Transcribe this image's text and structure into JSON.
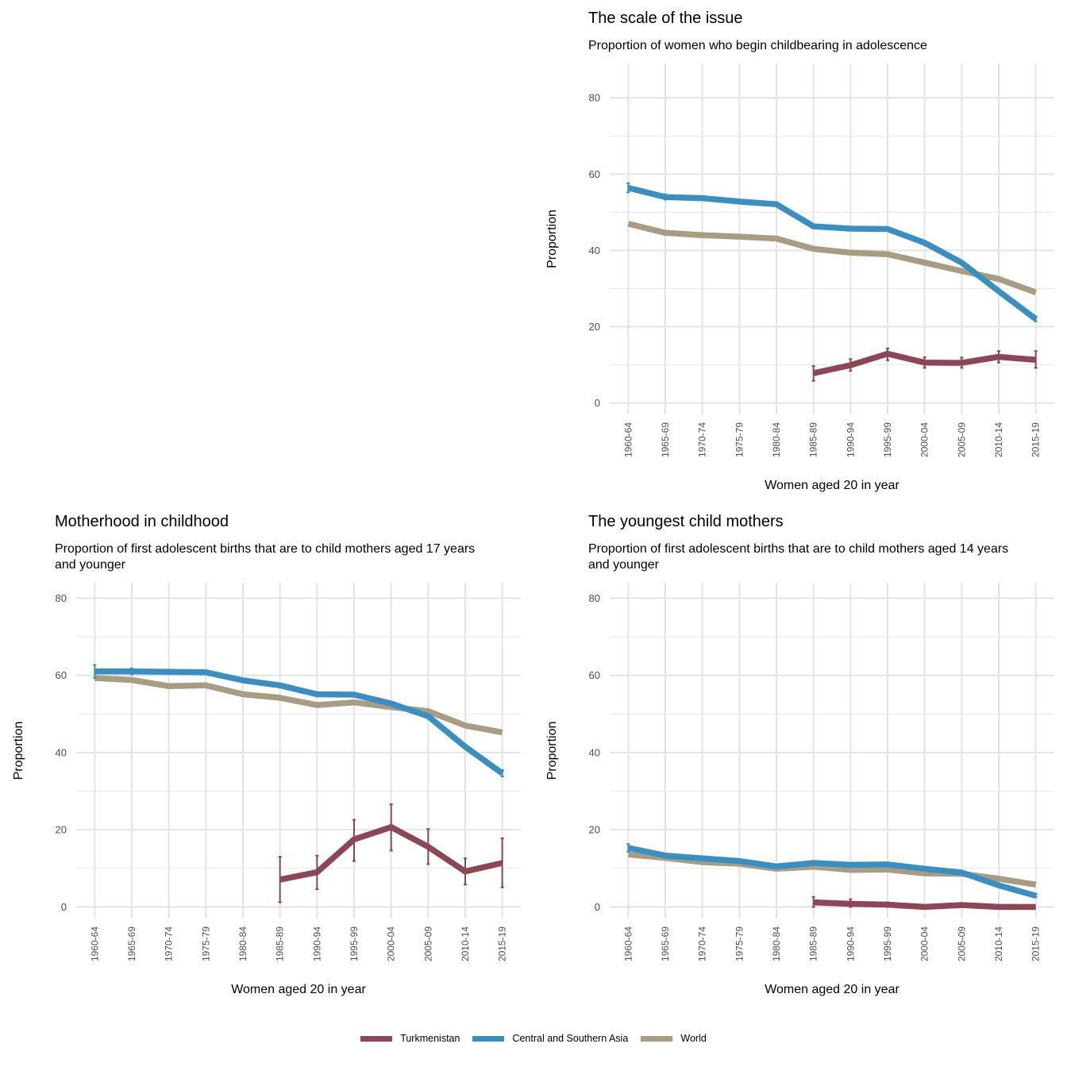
{
  "legend": {
    "items": [
      {
        "label": "Turkmenistan",
        "color": "#8c4655"
      },
      {
        "label": "Central and Southern Asia",
        "color": "#3a8fc2"
      },
      {
        "label": "World",
        "color": "#a89d82"
      }
    ]
  },
  "chart_data": [
    {
      "type": "line",
      "title": "The scale of the issue",
      "subtitle": "Proportion of women who begin childbearing in adolescence",
      "xlabel": "Women aged 20 in year",
      "ylabel": "Proportion",
      "ylim": [
        -3,
        89
      ],
      "yticks": [
        0,
        20,
        40,
        60,
        80
      ],
      "grid": true,
      "categories": [
        "1960-64",
        "1965-69",
        "1970-74",
        "1975-79",
        "1980-84",
        "1985-89",
        "1990-94",
        "1995-99",
        "2000-04",
        "2005-09",
        "2010-14",
        "2015-19"
      ],
      "series": [
        {
          "name": "World",
          "color": "#a89d82",
          "values": [
            47,
            44.6,
            44,
            43.6,
            43.1,
            40.4,
            39.4,
            39,
            36.8,
            34.6,
            32.5,
            29
          ]
        },
        {
          "name": "Central and Southern Asia",
          "color": "#3a8fc2",
          "values": [
            56.4,
            54,
            53.7,
            52.8,
            52.1,
            46.3,
            45.7,
            45.6,
            42,
            36.8,
            29.3,
            22
          ],
          "errors": [
            [
              55.2,
              57.6
            ],
            [
              53.3,
              54.7
            ],
            null,
            null,
            null,
            null,
            null,
            null,
            null,
            null,
            null,
            [
              21.4,
              22.6
            ]
          ]
        },
        {
          "name": "Turkmenistan",
          "color": "#8c4655",
          "values": [
            null,
            null,
            null,
            null,
            null,
            7.8,
            9.9,
            12.9,
            10.6,
            10.5,
            12.1,
            11.3
          ],
          "errors": [
            null,
            null,
            null,
            null,
            null,
            [
              5.8,
              9.7
            ],
            [
              8.4,
              11.5
            ],
            [
              11.2,
              14.3
            ],
            [
              9.2,
              12
            ],
            [
              9.2,
              11.9
            ],
            [
              10.6,
              13.6
            ],
            [
              9.2,
              13.6
            ]
          ]
        }
      ]
    },
    {
      "type": "line",
      "title": "Motherhood in childhood",
      "subtitle": "Proportion of first adolescent births that are to child mothers aged 17 years and younger",
      "xlabel": "Women aged 20 in year",
      "ylabel": "Proportion",
      "ylim": [
        -3,
        84
      ],
      "yticks": [
        0,
        20,
        40,
        60,
        80
      ],
      "grid": true,
      "categories": [
        "1960-64",
        "1965-69",
        "1970-74",
        "1975-79",
        "1980-84",
        "1985-89",
        "1990-94",
        "1995-99",
        "2000-04",
        "2005-09",
        "2010-14",
        "2015-19"
      ],
      "series": [
        {
          "name": "World",
          "color": "#a89d82",
          "values": [
            59.3,
            58.8,
            57.2,
            57.4,
            55.1,
            54.2,
            52.3,
            53,
            51.8,
            50.7,
            47,
            45.2
          ]
        },
        {
          "name": "Central and Southern Asia",
          "color": "#3a8fc2",
          "values": [
            61,
            61,
            60.9,
            60.8,
            58.7,
            57.4,
            55.1,
            55,
            52.7,
            49.4,
            41.5,
            34.6
          ],
          "errors": [
            [
              59.3,
              62.7
            ],
            [
              60.2,
              61.8
            ],
            [
              60.3,
              61.5
            ],
            null,
            null,
            null,
            null,
            null,
            null,
            null,
            null,
            [
              33.8,
              35.5
            ]
          ]
        },
        {
          "name": "Turkmenistan",
          "color": "#8c4655",
          "values": [
            null,
            null,
            null,
            null,
            null,
            7.1,
            9,
            17.5,
            20.7,
            15.6,
            9.2,
            11.4
          ],
          "errors": [
            null,
            null,
            null,
            null,
            null,
            [
              1.2,
              13
            ],
            [
              4.6,
              13.3
            ],
            [
              11.9,
              22.6
            ],
            [
              14.6,
              26.6
            ],
            [
              11.1,
              20.2
            ],
            [
              5.8,
              12.6
            ],
            [
              5.1,
              17.8
            ]
          ]
        }
      ]
    },
    {
      "type": "line",
      "title": "The youngest child mothers",
      "subtitle": "Proportion of first adolescent births that are to child mothers aged 14 years and younger",
      "xlabel": "Women aged 20 in year",
      "ylabel": "Proportion",
      "ylim": [
        -3,
        84
      ],
      "yticks": [
        0,
        20,
        40,
        60,
        80
      ],
      "grid": true,
      "categories": [
        "1960-64",
        "1965-69",
        "1970-74",
        "1975-79",
        "1980-84",
        "1985-89",
        "1990-94",
        "1995-99",
        "2000-04",
        "2005-09",
        "2010-14",
        "2015-19"
      ],
      "series": [
        {
          "name": "World",
          "color": "#a89d82",
          "values": [
            13.6,
            12.7,
            11.6,
            11.2,
            9.9,
            10.4,
            9.6,
            9.7,
            8.7,
            8.6,
            7.3,
            5.8
          ]
        },
        {
          "name": "Central and Southern Asia",
          "color": "#3a8fc2",
          "values": [
            15.3,
            13.3,
            12.6,
            11.9,
            10.5,
            11.4,
            10.9,
            11,
            9.9,
            8.9,
            5.6,
            2.9
          ],
          "errors": [
            [
              14.3,
              16.3
            ],
            null,
            null,
            null,
            null,
            null,
            null,
            null,
            null,
            null,
            null,
            [
              2.5,
              3.3
            ]
          ]
        },
        {
          "name": "Turkmenistan",
          "color": "#8c4655",
          "values": [
            null,
            null,
            null,
            null,
            null,
            1.2,
            0.8,
            0.6,
            0,
            0.5,
            0,
            0
          ],
          "errors": [
            null,
            null,
            null,
            null,
            null,
            [
              0,
              2.6
            ],
            [
              0,
              2
            ],
            [
              0,
              1.2
            ],
            null,
            [
              0,
              1
            ],
            null,
            null
          ]
        }
      ]
    }
  ]
}
